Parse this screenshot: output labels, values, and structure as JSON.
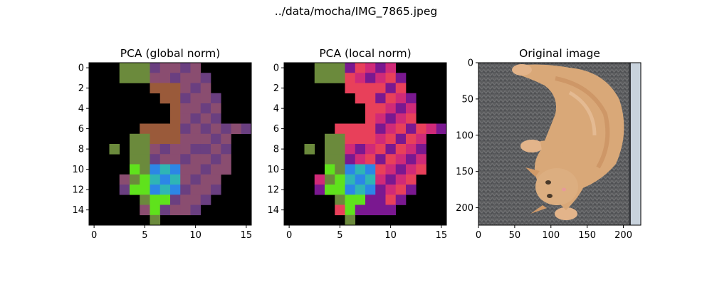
{
  "figure": {
    "suptitle": "../data/mocha/IMG_7865.jpeg"
  },
  "palette": {
    "background": "#000000",
    "green": "#5fe21c",
    "olive": "#6b8a3c",
    "blue": "#2c86e6",
    "teal": "#2fb5b5",
    "magenta_global": "#8a4d70",
    "purple_global": "#6a3f80",
    "brown": "#9a5a3a",
    "red_local": "#e8405a",
    "magenta_local": "#d02a78",
    "purple_local": "#7a1890"
  },
  "chart_data": [
    {
      "type": "heatmap",
      "title": "PCA (global norm)",
      "x_ticks": [
        0,
        5,
        10,
        15
      ],
      "y_ticks": [
        0,
        2,
        4,
        6,
        8,
        10,
        12,
        14
      ],
      "xlim": [
        -0.5,
        15.5
      ],
      "ylim": [
        15.5,
        -0.5
      ],
      "grid_size": 16,
      "cells": [
        [
          0,
          0,
          0,
          0,
          0,
          0,
          0,
          0,
          0,
          0,
          0,
          0,
          0,
          0,
          0,
          0
        ],
        [
          0,
          0,
          0,
          0,
          0,
          0,
          0,
          0,
          0,
          0,
          0,
          0,
          0,
          0,
          0,
          0
        ],
        [
          0,
          0,
          0,
          0,
          0,
          0,
          0,
          0,
          0,
          0,
          0,
          0,
          0,
          0,
          0,
          0
        ],
        [
          0,
          0,
          0,
          0,
          0,
          0,
          0,
          0,
          0,
          0,
          0,
          0,
          0,
          0,
          0,
          0
        ],
        [
          0,
          0,
          0,
          0,
          0,
          0,
          0,
          0,
          0,
          0,
          0,
          0,
          0,
          0,
          0,
          0
        ],
        [
          0,
          0,
          0,
          0,
          0,
          0,
          0,
          0,
          0,
          0,
          0,
          0,
          0,
          0,
          0,
          0
        ],
        [
          0,
          0,
          0,
          0,
          0,
          0,
          0,
          0,
          0,
          0,
          0,
          0,
          0,
          0,
          0,
          0
        ],
        [
          0,
          0,
          0,
          0,
          0,
          0,
          0,
          0,
          0,
          0,
          0,
          0,
          0,
          0,
          0,
          0
        ],
        [
          0,
          0,
          0,
          0,
          0,
          0,
          0,
          0,
          0,
          0,
          0,
          0,
          0,
          0,
          0,
          0
        ],
        [
          0,
          0,
          0,
          0,
          0,
          0,
          0,
          0,
          0,
          0,
          0,
          0,
          0,
          0,
          0,
          0
        ],
        [
          0,
          0,
          0,
          0,
          0,
          0,
          0,
          0,
          0,
          0,
          0,
          0,
          0,
          0,
          0,
          0
        ],
        [
          0,
          0,
          0,
          0,
          0,
          0,
          0,
          0,
          0,
          0,
          0,
          0,
          0,
          0,
          0,
          0
        ],
        [
          0,
          0,
          0,
          0,
          0,
          0,
          0,
          0,
          0,
          0,
          0,
          0,
          0,
          0,
          0,
          0
        ],
        [
          0,
          0,
          0,
          0,
          0,
          0,
          0,
          0,
          0,
          0,
          0,
          0,
          0,
          0,
          0,
          0
        ],
        [
          0,
          0,
          0,
          0,
          0,
          0,
          0,
          0,
          0,
          0,
          0,
          0,
          0,
          0,
          0,
          0
        ],
        [
          0,
          0,
          0,
          0,
          0,
          0,
          0,
          0,
          0,
          0,
          0,
          0,
          0,
          0,
          0,
          0
        ]
      ]
    },
    {
      "type": "heatmap",
      "title": "PCA (local norm)",
      "x_ticks": [
        0,
        5,
        10,
        15
      ],
      "y_ticks": [
        0,
        2,
        4,
        6,
        8,
        10,
        12,
        14
      ],
      "xlim": [
        -0.5,
        15.5
      ],
      "ylim": [
        15.5,
        -0.5
      ],
      "grid_size": 16
    },
    {
      "type": "image",
      "title": "Original image",
      "x_ticks": [
        0,
        50,
        100,
        150,
        200
      ],
      "y_ticks": [
        0,
        50,
        100,
        150,
        200
      ],
      "xlim": [
        0,
        224
      ],
      "ylim": [
        224,
        0
      ]
    }
  ]
}
